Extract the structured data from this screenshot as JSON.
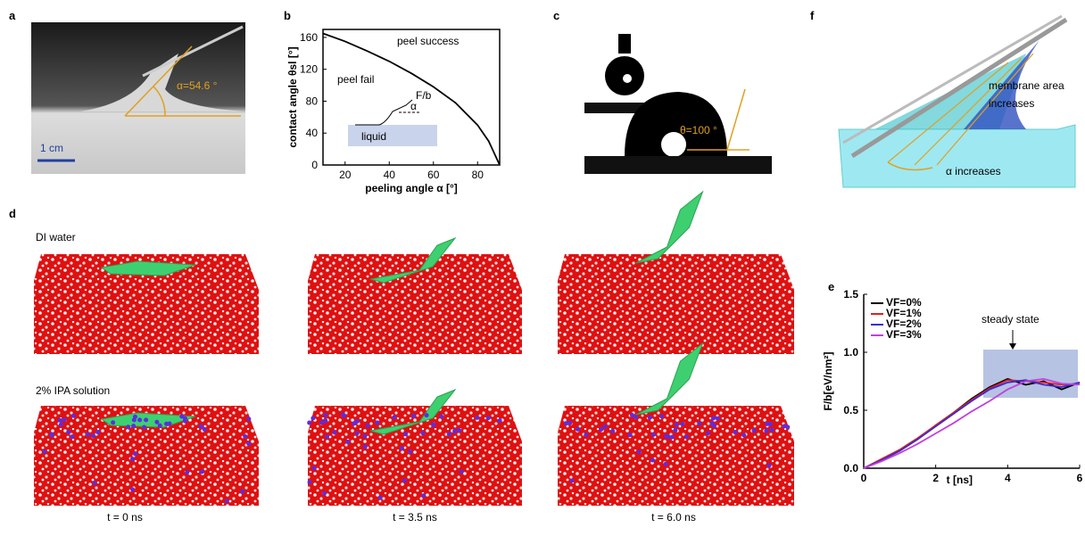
{
  "panels": {
    "labels": [
      "a",
      "b",
      "c",
      "d",
      "e",
      "f"
    ],
    "a": {
      "angle": "α=54.6 °",
      "scale": "1 cm"
    },
    "c": {
      "angle": "θ=100 °"
    },
    "d": {
      "rows": [
        "DI water",
        "2% IPA solution"
      ],
      "times": [
        "t = 0 ns",
        "t = 3.5 ns",
        "t = 6.0 ns"
      ]
    },
    "f": {
      "area": [
        "membrane area",
        "increases"
      ],
      "alpha": "α increases"
    }
  },
  "chart_data": [
    {
      "type": "line",
      "x_label": "peeling angle α [°]",
      "y_label": "contact angle θsl [°]",
      "x": [
        10,
        20,
        30,
        40,
        50,
        60,
        70,
        80,
        85,
        90
      ],
      "values": [
        165,
        155,
        143,
        130,
        115,
        98,
        78,
        50,
        30,
        0
      ],
      "color": "#000000",
      "xlim": [
        10,
        90
      ],
      "ylim": [
        0,
        170
      ],
      "xticks": [
        20,
        40,
        60,
        80
      ],
      "yticks": [
        0,
        40,
        80,
        120,
        160
      ],
      "annotations": [
        "peel success",
        "peel fail",
        "F/b",
        "α",
        "liquid"
      ]
    },
    {
      "type": "line",
      "x_label": "t [ns]",
      "y_label": "F/b[eV/nm²]",
      "x": [
        0,
        0.5,
        1,
        1.5,
        2,
        2.5,
        3,
        3.5,
        4,
        4.5,
        5,
        5.5,
        6
      ],
      "series": [
        {
          "name": "VF=0%",
          "color": "#000000",
          "values": [
            0,
            0.07,
            0.15,
            0.25,
            0.37,
            0.48,
            0.6,
            0.7,
            0.77,
            0.72,
            0.75,
            0.68,
            0.74
          ]
        },
        {
          "name": "VF=1%",
          "color": "#e02020",
          "values": [
            0,
            0.08,
            0.16,
            0.26,
            0.37,
            0.48,
            0.59,
            0.69,
            0.76,
            0.75,
            0.74,
            0.72,
            0.73
          ]
        },
        {
          "name": "VF=2%",
          "color": "#3a2bd0",
          "values": [
            0,
            0.07,
            0.15,
            0.25,
            0.36,
            0.47,
            0.58,
            0.68,
            0.74,
            0.76,
            0.72,
            0.7,
            0.74
          ]
        },
        {
          "name": "VF=3%",
          "color": "#c040e0",
          "values": [
            0,
            0.06,
            0.13,
            0.21,
            0.3,
            0.39,
            0.49,
            0.58,
            0.68,
            0.75,
            0.77,
            0.73,
            0.72
          ]
        }
      ],
      "xlim": [
        0,
        6
      ],
      "ylim": [
        0,
        1.5
      ],
      "xticks": [
        0,
        2,
        4,
        6
      ],
      "yticks": [
        {
          "value": 0,
          "label": "0.0"
        },
        {
          "value": 0.5,
          "label": "0.5"
        },
        {
          "value": 1,
          "label": "1.0"
        },
        {
          "value": 1.5,
          "label": "1.5"
        }
      ],
      "annotations": [
        "steady state"
      ]
    }
  ]
}
